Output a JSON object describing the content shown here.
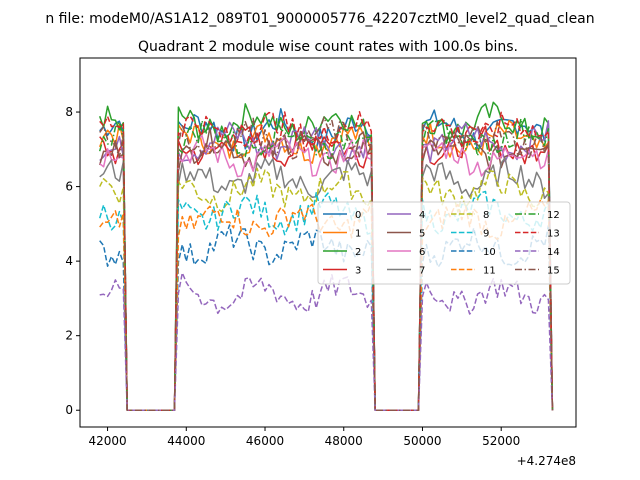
{
  "figure": {
    "suptitle": "n file: modeM0/AS1A12_089T01_9000005776_42207cztM0_level2_quad_clean",
    "title": "Quadrant 2 module wise count rates with 100.0s bins.",
    "x_offset_label": "+4.274e8"
  },
  "chart_data": {
    "type": "line",
    "title": "Quadrant 2 module wise count rates with 100.0s bins.",
    "xlabel": "",
    "ylabel": "",
    "x_offset": 427400000,
    "xlim": [
      41300,
      53900
    ],
    "ylim": [
      -0.45,
      9.45
    ],
    "x_ticks": [
      42000,
      44000,
      46000,
      48000,
      50000,
      52000
    ],
    "x_tick_labels": [
      "42000",
      "44000",
      "46000",
      "48000",
      "50000",
      "52000"
    ],
    "y_ticks": [
      0,
      2,
      4,
      6,
      8
    ],
    "y_tick_labels": [
      "0",
      "2",
      "4",
      "6",
      "8"
    ],
    "grid": false,
    "legend_position": "center-right",
    "legend_columns": 4,
    "time_bins": {
      "start": 41800,
      "step": 100,
      "count": 116
    },
    "active_segments": [
      [
        41800,
        42400
      ],
      [
        43800,
        48700
      ],
      [
        50000,
        53200
      ]
    ],
    "series": [
      {
        "name": "0",
        "level": 7.5,
        "color": "#1f77b4",
        "dash": "solid"
      },
      {
        "name": "1",
        "level": 7.2,
        "color": "#ff7f0e",
        "dash": "solid"
      },
      {
        "name": "2",
        "level": 7.7,
        "color": "#2ca02c",
        "dash": "solid"
      },
      {
        "name": "3",
        "level": 7.1,
        "color": "#d62728",
        "dash": "solid"
      },
      {
        "name": "4",
        "level": 7.2,
        "color": "#9467bd",
        "dash": "solid"
      },
      {
        "name": "5",
        "level": 7.0,
        "color": "#8c564b",
        "dash": "solid"
      },
      {
        "name": "6",
        "level": 6.8,
        "color": "#e377c2",
        "dash": "solid"
      },
      {
        "name": "7",
        "level": 6.2,
        "color": "#7f7f7f",
        "dash": "solid"
      },
      {
        "name": "8",
        "level": 5.9,
        "color": "#bcbd22",
        "dash": "dashed"
      },
      {
        "name": "9",
        "level": 5.3,
        "color": "#17becf",
        "dash": "dashed"
      },
      {
        "name": "10",
        "level": 4.4,
        "color": "#1f77b4",
        "dash": "dashed"
      },
      {
        "name": "11",
        "level": 5.1,
        "color": "#ff7f0e",
        "dash": "dashed"
      },
      {
        "name": "12",
        "level": 7.3,
        "color": "#2ca02c",
        "dash": "dashdot"
      },
      {
        "name": "13",
        "level": 7.5,
        "color": "#d62728",
        "dash": "dashed"
      },
      {
        "name": "14",
        "level": 3.1,
        "color": "#9467bd",
        "dash": "dashed"
      },
      {
        "name": "15",
        "level": 7.3,
        "color": "#8c564b",
        "dash": "dashdot"
      }
    ]
  }
}
